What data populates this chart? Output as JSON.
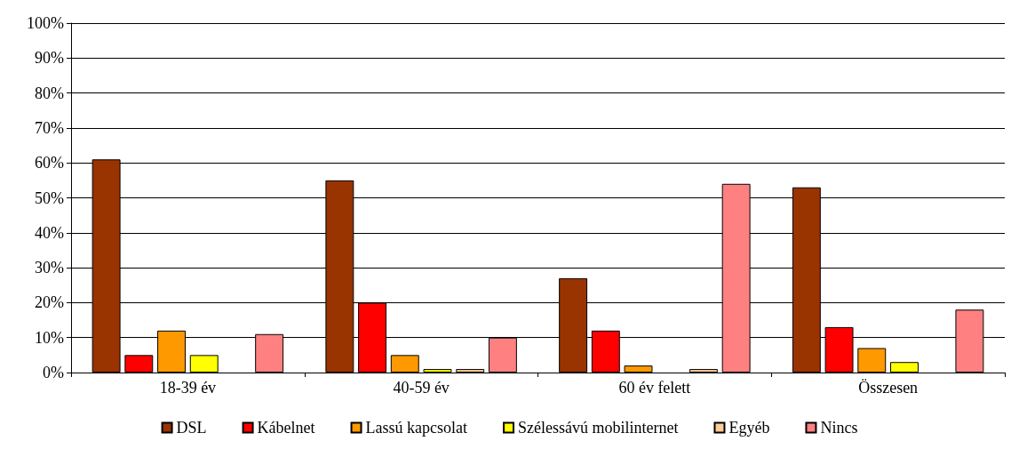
{
  "chart_data": {
    "type": "bar",
    "categories": [
      "18-39 év",
      "40-59 év",
      "60 év felett",
      "Összesen"
    ],
    "series": [
      {
        "name": "DSL",
        "color": "#993300",
        "values": [
          61,
          55,
          27,
          53
        ]
      },
      {
        "name": "Kábelnet",
        "color": "#ff0000",
        "values": [
          5,
          20,
          12,
          13
        ]
      },
      {
        "name": "Lassú kapcsolat",
        "color": "#ff9900",
        "values": [
          12,
          5,
          2,
          7
        ]
      },
      {
        "name": "Szélessávú mobilinternet",
        "color": "#ffff00",
        "values": [
          5,
          1,
          0,
          3
        ]
      },
      {
        "name": "Egyéb",
        "color": "#ffcc99",
        "values": [
          0,
          1,
          1,
          0
        ]
      },
      {
        "name": "Nincs",
        "color": "#ff8080",
        "values": [
          11,
          10,
          54,
          18
        ]
      }
    ],
    "ylim": [
      0,
      100
    ],
    "yticks": [
      {
        "value": 0,
        "label": "0%"
      },
      {
        "value": 10,
        "label": "10%"
      },
      {
        "value": 20,
        "label": "20%"
      },
      {
        "value": 30,
        "label": "30%"
      },
      {
        "value": 40,
        "label": "40%"
      },
      {
        "value": 50,
        "label": "50%"
      },
      {
        "value": 60,
        "label": "60%"
      },
      {
        "value": 70,
        "label": "70%"
      },
      {
        "value": 80,
        "label": "80%"
      },
      {
        "value": 90,
        "label": "90%"
      },
      {
        "value": 100,
        "label": "100%"
      }
    ],
    "grid": "y",
    "legend": "bottom"
  }
}
